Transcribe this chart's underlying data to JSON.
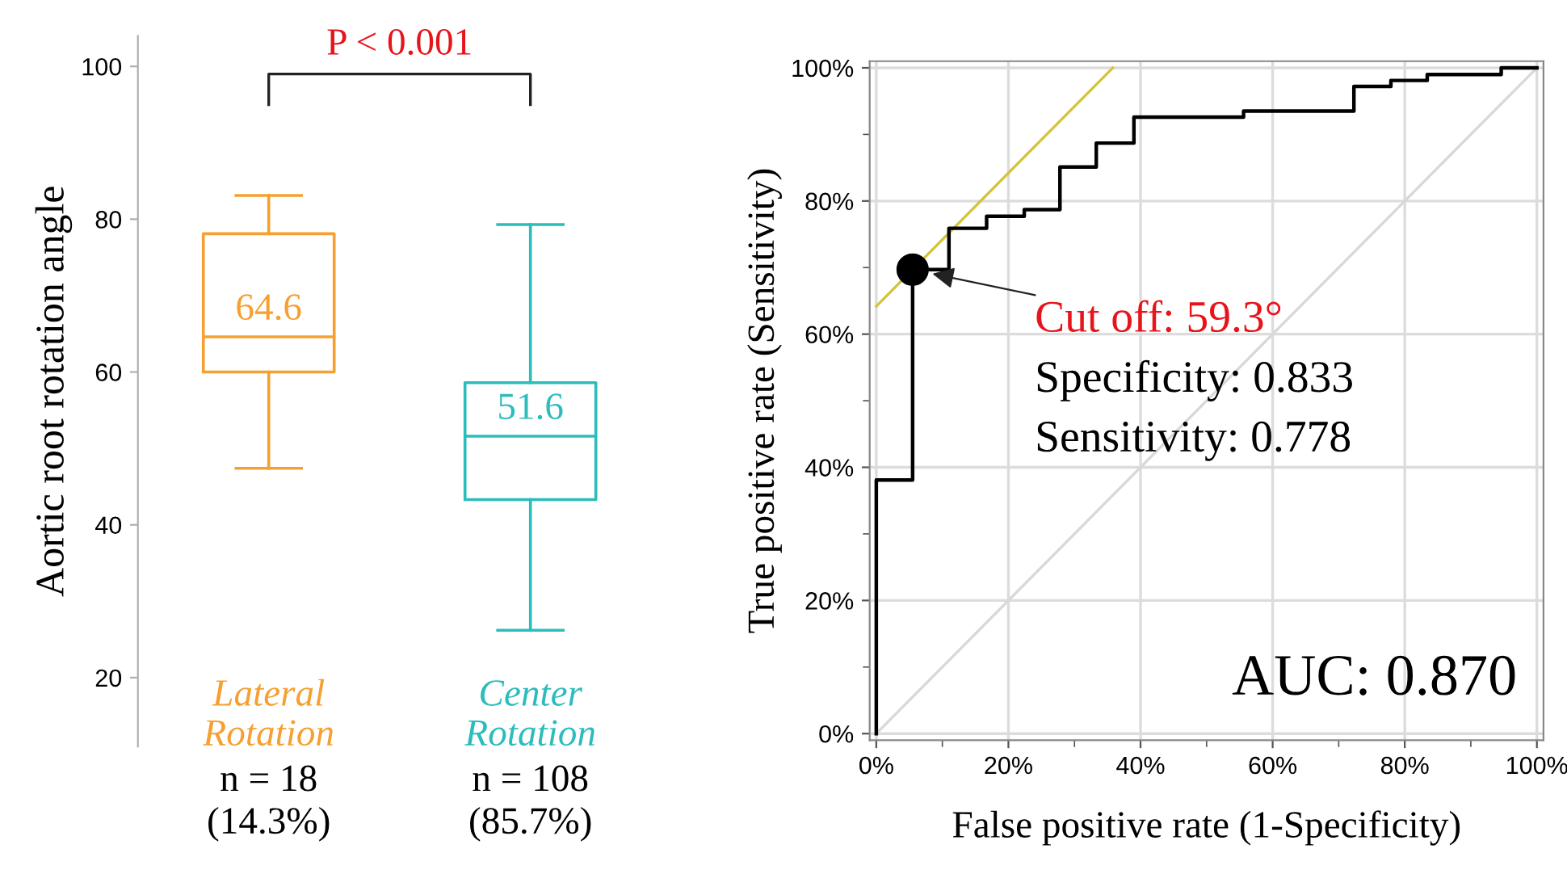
{
  "chart_data": [
    {
      "type": "box",
      "ylabel": "Aortic root rotation angle",
      "categories": [
        "Lateral\nRotation",
        "Center\nRotation"
      ],
      "colors": [
        "#f5a030",
        "#2bbcbc"
      ],
      "boxes": [
        {
          "low": 47.4,
          "q1": 60.0,
          "median": 64.6,
          "q3": 78.1,
          "high": 83.1
        },
        {
          "low": 26.2,
          "q1": 43.3,
          "median": 51.6,
          "q3": 58.6,
          "high": 79.3
        }
      ],
      "value_labels": [
        "64.6",
        "51.6"
      ],
      "ylim": [
        11,
        104
      ],
      "yticks": [
        20,
        40,
        60,
        80,
        100
      ],
      "annotations": [
        "P < 0.001",
        "n = 18\n(14.3%)",
        "n = 108\n(85.7%)"
      ],
      "grid": false,
      "legend": false
    },
    {
      "type": "step",
      "xlabel": "False positive rate (1-Specificity)",
      "ylabel": "True positive rate (Sensitivity)",
      "series": [
        {
          "type": "line",
          "color": "#d8d8d8",
          "x": [
            0,
            100
          ],
          "values": [
            0,
            100
          ]
        },
        {
          "type": "line",
          "color": "#d4c43a",
          "x": [
            0,
            35.8
          ],
          "values": [
            64.2,
            100
          ]
        },
        {
          "type": "step",
          "color": "#000000",
          "x": [
            0,
            0,
            5.5,
            11.0,
            16.7,
            22.4,
            27.8,
            33.3,
            39.0,
            55.6,
            72.3,
            77.9,
            83.4,
            94.6,
            100
          ],
          "values": [
            0,
            38.1,
            69.7,
            75.9,
            77.7,
            78.7,
            85.1,
            88.7,
            92.6,
            93.5,
            97.2,
            98.1,
            99.0,
            100,
            100
          ]
        },
        {
          "type": "scatter",
          "color": "#000000",
          "marker": "circle",
          "x": [
            5.5
          ],
          "values": [
            69.7
          ]
        }
      ],
      "xlim": [
        -1,
        101
      ],
      "ylim": [
        -1,
        101
      ],
      "xticks": [
        {
          "value": 0,
          "label": "0%"
        },
        {
          "value": 10,
          "label": null
        },
        {
          "value": 20,
          "label": "20%"
        },
        {
          "value": 30,
          "label": null
        },
        {
          "value": 40,
          "label": "40%"
        },
        {
          "value": 50,
          "label": null
        },
        {
          "value": 60,
          "label": "60%"
        },
        {
          "value": 70,
          "label": null
        },
        {
          "value": 80,
          "label": "80%"
        },
        {
          "value": 90,
          "label": null
        },
        {
          "value": 100,
          "label": "100%"
        }
      ],
      "yticks": [
        {
          "value": 0,
          "label": "0%"
        },
        {
          "value": 10,
          "label": null
        },
        {
          "value": 20,
          "label": "20%"
        },
        {
          "value": 30,
          "label": null
        },
        {
          "value": 40,
          "label": "40%"
        },
        {
          "value": 50,
          "label": null
        },
        {
          "value": 60,
          "label": "60%"
        },
        {
          "value": 70,
          "label": null
        },
        {
          "value": 80,
          "label": "80%"
        },
        {
          "value": 90,
          "label": null
        },
        {
          "value": 100,
          "label": "100%"
        }
      ],
      "annotations": [
        {
          "text": "Cut off: 59.3°",
          "x": 5.5,
          "y": 69.7
        },
        "Specificity: 0.833",
        "Sensitivity: 0.778",
        "AUC: 0.870"
      ],
      "grid": true,
      "legend": false
    }
  ]
}
